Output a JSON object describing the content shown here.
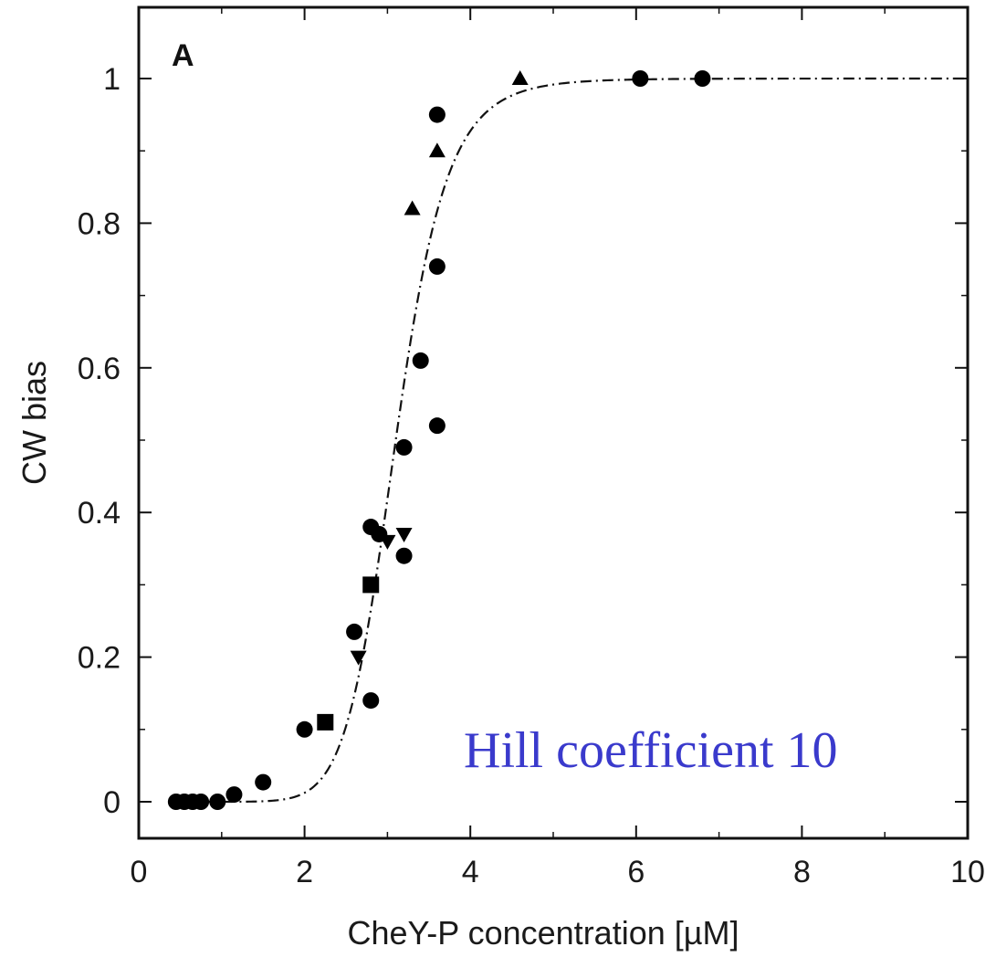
{
  "chart_data": {
    "type": "scatter",
    "panel_label": "A",
    "xlabel": "CheY-P  concentration  [µM]",
    "ylabel": "CW bias",
    "xlim": [
      0,
      10
    ],
    "ylim": [
      -0.05,
      1.1
    ],
    "x_ticks": [
      0,
      2,
      4,
      6,
      8,
      10
    ],
    "x_tick_labels": [
      "0",
      "2",
      "4",
      "6",
      "8",
      "10"
    ],
    "y_ticks": [
      0,
      0.2,
      0.4,
      0.6,
      0.8,
      1
    ],
    "y_tick_labels": [
      "0",
      "0.2",
      "0.4",
      "0.6",
      "0.8",
      "1"
    ],
    "grid": false,
    "annotation": {
      "text": "Hill coefficient 10",
      "color": "#3a3acc"
    },
    "fit_curve": {
      "type": "hill",
      "n": 10,
      "k": 3.1,
      "style": "dash-dot",
      "xmin": 0.5,
      "xmax": 10
    },
    "series": [
      {
        "marker": "circle",
        "points": [
          [
            0.45,
            0.0
          ],
          [
            0.55,
            0.0
          ],
          [
            0.65,
            0.0
          ],
          [
            0.75,
            0.0
          ],
          [
            0.95,
            0.0
          ],
          [
            1.15,
            0.01
          ],
          [
            1.5,
            0.027
          ],
          [
            2.0,
            0.1
          ],
          [
            2.6,
            0.235
          ],
          [
            2.8,
            0.14
          ],
          [
            2.8,
            0.38
          ],
          [
            2.9,
            0.37
          ],
          [
            3.2,
            0.34
          ],
          [
            3.2,
            0.49
          ],
          [
            3.4,
            0.61
          ],
          [
            3.6,
            0.52
          ],
          [
            3.6,
            0.74
          ],
          [
            3.6,
            0.95
          ],
          [
            6.05,
            1.0
          ],
          [
            6.8,
            1.0
          ]
        ]
      },
      {
        "marker": "square",
        "points": [
          [
            2.25,
            0.11
          ],
          [
            2.8,
            0.3
          ]
        ]
      },
      {
        "marker": "triangle-up",
        "points": [
          [
            3.3,
            0.82
          ],
          [
            3.6,
            0.9
          ],
          [
            4.6,
            1.0
          ]
        ]
      },
      {
        "marker": "triangle-down",
        "points": [
          [
            2.65,
            0.2
          ],
          [
            3.0,
            0.36
          ],
          [
            3.2,
            0.37
          ]
        ]
      }
    ]
  }
}
